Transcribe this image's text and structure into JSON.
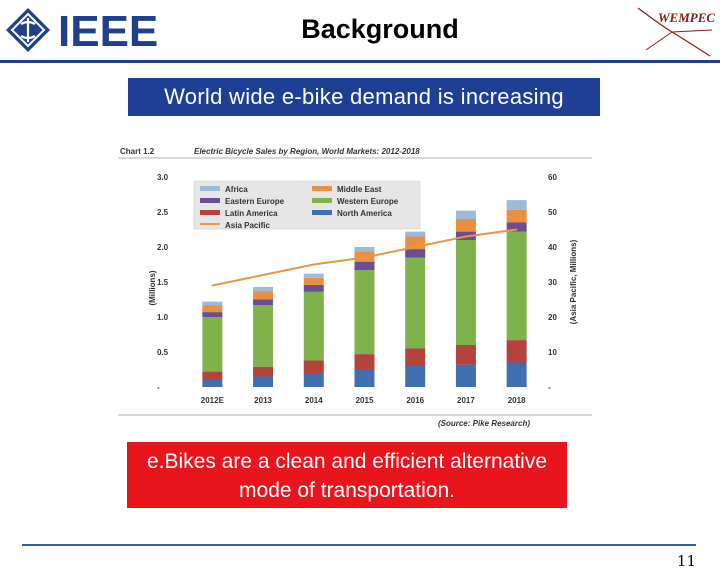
{
  "header": {
    "logo_text": "IEEE",
    "title": "Background",
    "partner_logo_text": "WEMPEC"
  },
  "banner": {
    "text": "World wide e-bike demand is increasing"
  },
  "callout": {
    "text": "e.Bikes are a clean and efficient alternative mode of transportation."
  },
  "footer": {
    "slide_number": "11"
  },
  "colors": {
    "banner_bg": "#1f3f94",
    "callout_bg": "#e8161c",
    "header_rule": "#1f3f8f",
    "Africa": "#9dbbd9",
    "Middle East": "#e98f3f",
    "Eastern Europe": "#6a4d92",
    "Western Europe": "#7fb24a",
    "Latin America": "#b5433d",
    "North America": "#3f6fb0",
    "Asia Pacific": "#e9964a"
  },
  "chart_data": {
    "type": "bar",
    "stacked": true,
    "chart_label": "Chart 1.2",
    "title": "Electric Bicycle Sales by Region, World Markets: 2012-2018",
    "ylabel": "(Millions)",
    "y2label": "(Asia Pacific, Millions)",
    "source": "(Source: Pike Research)",
    "categories": [
      "2012E",
      "2013",
      "2014",
      "2015",
      "2016",
      "2017",
      "2018"
    ],
    "ylim": [
      0,
      3.0
    ],
    "yticks": [
      "-",
      "0.5",
      "1.0",
      "1.5",
      "2.0",
      "2.5",
      "3.0"
    ],
    "y2lim": [
      0,
      60
    ],
    "y2ticks": [
      "-",
      "10",
      "20",
      "30",
      "40",
      "50",
      "60"
    ],
    "legend_position": "top-left",
    "series": [
      {
        "name": "North America",
        "values": [
          0.1,
          0.15,
          0.2,
          0.25,
          0.3,
          0.32,
          0.35
        ]
      },
      {
        "name": "Latin America",
        "values": [
          0.12,
          0.14,
          0.18,
          0.22,
          0.25,
          0.28,
          0.32
        ]
      },
      {
        "name": "Western Europe",
        "values": [
          0.78,
          0.88,
          0.98,
          1.2,
          1.3,
          1.5,
          1.55
        ]
      },
      {
        "name": "Eastern Europe",
        "values": [
          0.07,
          0.08,
          0.1,
          0.12,
          0.12,
          0.12,
          0.13
        ]
      },
      {
        "name": "Middle East",
        "values": [
          0.1,
          0.12,
          0.1,
          0.15,
          0.18,
          0.18,
          0.18
        ]
      },
      {
        "name": "Africa",
        "values": [
          0.05,
          0.06,
          0.06,
          0.06,
          0.07,
          0.12,
          0.14
        ]
      }
    ],
    "line_series": {
      "name": "Asia Pacific",
      "axis": "right",
      "values": [
        29,
        32,
        35,
        37,
        40,
        43,
        45
      ]
    }
  }
}
